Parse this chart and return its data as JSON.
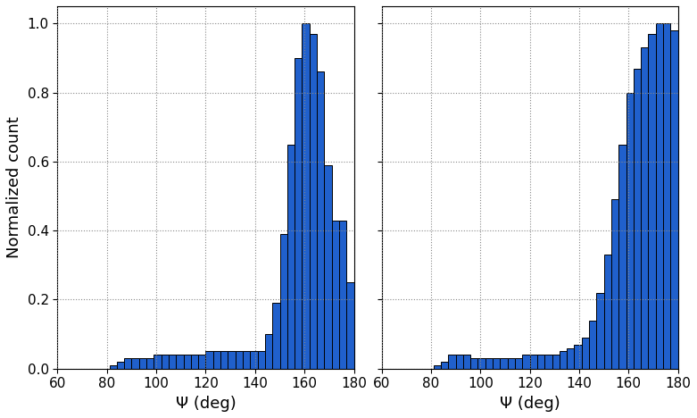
{
  "left_hist": {
    "bin_edges": [
      60,
      63,
      66,
      69,
      72,
      75,
      78,
      81,
      84,
      87,
      90,
      93,
      96,
      99,
      102,
      105,
      108,
      111,
      114,
      117,
      120,
      123,
      126,
      129,
      132,
      135,
      138,
      141,
      144,
      147,
      150,
      153,
      156,
      159,
      162,
      165,
      168,
      171,
      174,
      177,
      180
    ],
    "values": [
      0.0,
      0.0,
      0.0,
      0.0,
      0.0,
      0.0,
      0.0,
      0.01,
      0.02,
      0.03,
      0.03,
      0.03,
      0.03,
      0.04,
      0.04,
      0.04,
      0.04,
      0.04,
      0.04,
      0.04,
      0.05,
      0.05,
      0.05,
      0.05,
      0.05,
      0.05,
      0.05,
      0.05,
      0.1,
      0.19,
      0.39,
      0.65,
      0.9,
      1.0,
      0.97,
      0.86,
      0.59,
      0.43,
      0.43,
      0.25
    ]
  },
  "right_hist": {
    "bin_edges": [
      60,
      63,
      66,
      69,
      72,
      75,
      78,
      81,
      84,
      87,
      90,
      93,
      96,
      99,
      102,
      105,
      108,
      111,
      114,
      117,
      120,
      123,
      126,
      129,
      132,
      135,
      138,
      141,
      144,
      147,
      150,
      153,
      156,
      159,
      162,
      165,
      168,
      171,
      174,
      177,
      180
    ],
    "values": [
      0.0,
      0.0,
      0.0,
      0.0,
      0.0,
      0.0,
      0.0,
      0.01,
      0.02,
      0.04,
      0.04,
      0.04,
      0.03,
      0.03,
      0.03,
      0.03,
      0.03,
      0.03,
      0.03,
      0.04,
      0.04,
      0.04,
      0.04,
      0.04,
      0.05,
      0.06,
      0.07,
      0.09,
      0.14,
      0.22,
      0.33,
      0.49,
      0.65,
      0.8,
      0.87,
      0.93,
      0.97,
      1.0,
      1.0,
      0.98
    ]
  },
  "bar_color": "#2060cc",
  "bar_edgecolor": "#000000",
  "xlim": [
    60,
    180
  ],
  "ylim": [
    0,
    1.05
  ],
  "xlabel": "Ψ (deg)",
  "ylabel": "Normalized count",
  "xticks": [
    60,
    80,
    100,
    120,
    140,
    160,
    180
  ],
  "yticks": [
    0.0,
    0.2,
    0.4,
    0.6,
    0.8,
    1.0
  ],
  "grid_color": "#888888",
  "grid_linestyle": ":",
  "background_color": "#ffffff",
  "bin_width": 3
}
